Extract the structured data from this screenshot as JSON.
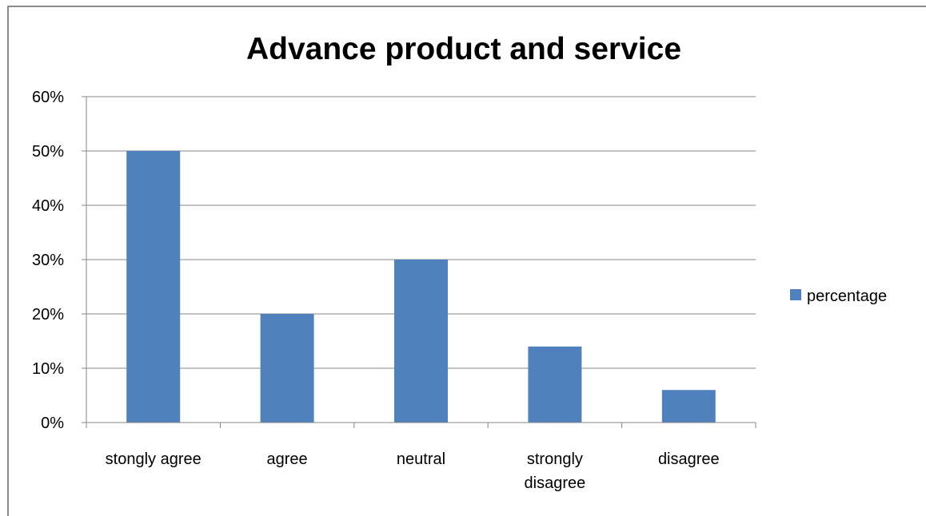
{
  "chart_data": {
    "type": "bar",
    "title": "Advance product and service",
    "categories": [
      "stongly agree",
      "agree",
      "neutral",
      "strongly disagree",
      "disagree"
    ],
    "series": [
      {
        "name": "percentage",
        "values": [
          50,
          20,
          30,
          14,
          6
        ],
        "color": "#4f81bd"
      }
    ],
    "ylim": [
      0,
      60
    ],
    "yticks": [
      0,
      10,
      20,
      30,
      40,
      50,
      60
    ],
    "ytick_format": "{v}%",
    "grid": true,
    "legend": "right",
    "gridline_color": "#868686",
    "axis_color": "#868686"
  }
}
